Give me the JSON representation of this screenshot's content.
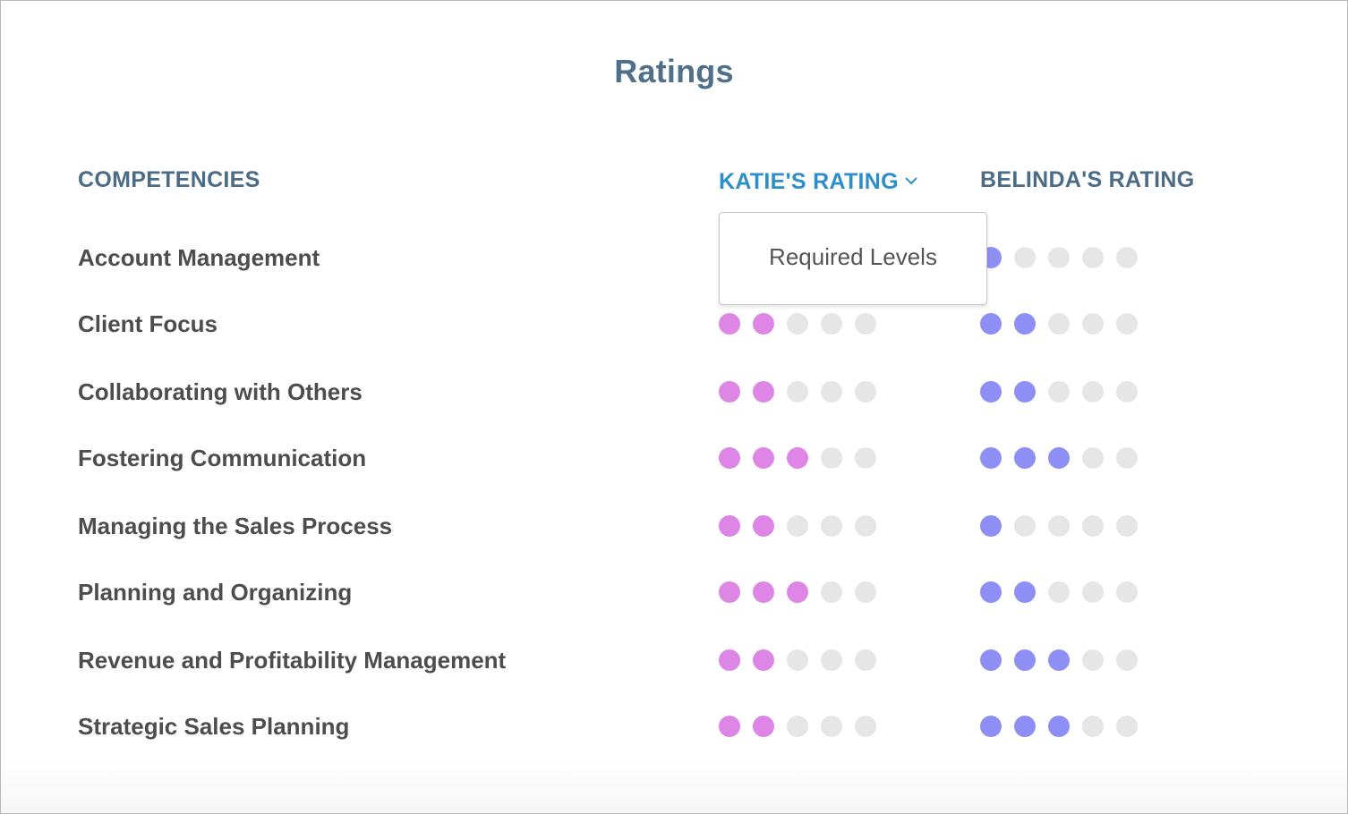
{
  "title": "Ratings",
  "columns": {
    "competencies": "COMPETENCIES",
    "katie": "KATIE'S RATING",
    "belinda": "BELINDA'S RATING"
  },
  "dropdown": {
    "open": true,
    "items": [
      "Required Levels"
    ]
  },
  "colors": {
    "katie_filled": "#dd86e6",
    "belinda_filled": "#8e8ff5",
    "empty": "#e6e6e6",
    "header": "#4a6c87",
    "header_active": "#2d8fc9"
  },
  "scale_max": 5,
  "rows": [
    {
      "label": "Account Management",
      "katie": null,
      "belinda": 1
    },
    {
      "label": "Client Focus",
      "katie": 2,
      "belinda": 2
    },
    {
      "label": "Collaborating with Others",
      "katie": 2,
      "belinda": 2
    },
    {
      "label": "Fostering Communication",
      "katie": 3,
      "belinda": 3
    },
    {
      "label": "Managing the Sales Process",
      "katie": 2,
      "belinda": 1
    },
    {
      "label": "Planning and Organizing",
      "katie": 3,
      "belinda": 2
    },
    {
      "label": "Revenue and Profitability Management",
      "katie": 2,
      "belinda": 3
    },
    {
      "label": "Strategic Sales Planning",
      "katie": 2,
      "belinda": 3
    }
  ]
}
